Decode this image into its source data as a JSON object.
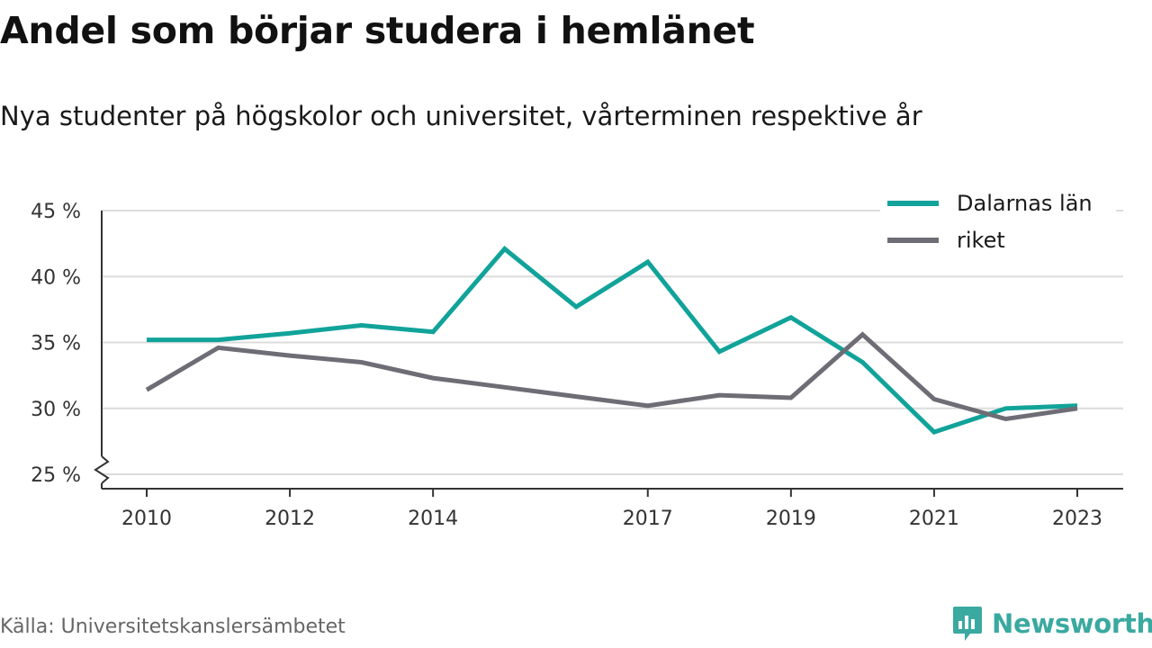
{
  "title": "Andel som börjar studera i hemlänet",
  "subtitle": "Nya studenter på högskolor och universitet, vårterminen respektive år",
  "source": "Källa: Universitetskanslersämbetet",
  "brand": {
    "name": "Newsworthy",
    "color": "#3aa9a0"
  },
  "chart_data": {
    "type": "line",
    "x": [
      2010,
      2011,
      2012,
      2013,
      2014,
      2015,
      2016,
      2017,
      2018,
      2019,
      2020,
      2021,
      2022,
      2023
    ],
    "x_ticks": [
      2010,
      2012,
      2014,
      2017,
      2019,
      2021,
      2023
    ],
    "x_tick_labels": [
      "2010",
      "2012",
      "2014",
      "2017",
      "2019",
      "2021",
      "2023"
    ],
    "y_ticks": [
      25,
      30,
      35,
      40,
      45
    ],
    "y_tick_labels": [
      "25 %",
      "30 %",
      "35 %",
      "40 %",
      "45 %"
    ],
    "ylim": [
      25,
      45
    ],
    "y_axis_break": true,
    "grid": true,
    "legend_position": "top-right",
    "series": [
      {
        "name": "Dalarnas län",
        "color": "#11a39a",
        "values": [
          35.2,
          35.2,
          35.7,
          36.3,
          35.8,
          42.1,
          37.7,
          41.1,
          34.3,
          36.9,
          33.5,
          28.2,
          30.0,
          30.2
        ]
      },
      {
        "name": "riket",
        "color": "#6e6d75",
        "values": [
          31.4,
          34.6,
          34.0,
          33.5,
          32.3,
          31.6,
          30.9,
          30.2,
          31.0,
          30.8,
          35.6,
          30.7,
          29.2,
          30.0
        ]
      }
    ]
  }
}
